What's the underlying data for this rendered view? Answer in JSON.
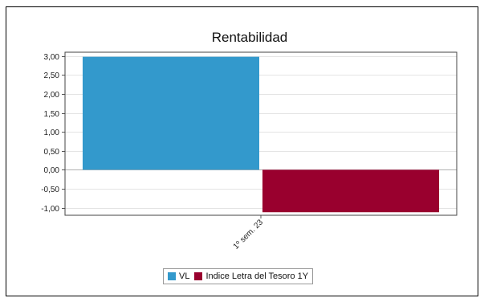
{
  "chart_data": {
    "type": "bar",
    "title": "Rentabilidad",
    "categories": [
      "1º sem. 23"
    ],
    "series": [
      {
        "name": "VL",
        "values": [
          2.98
        ],
        "color": "#3399cc"
      },
      {
        "name": "Indice Letra del Tesoro 1Y",
        "values": [
          -1.12
        ],
        "color": "#99002e"
      }
    ],
    "ylim": [
      -1.2,
      3.1
    ],
    "yticks": [
      3.0,
      2.5,
      2.0,
      1.5,
      1.0,
      0.5,
      0.0,
      -0.5,
      -1.0
    ],
    "ytick_labels": [
      "3,00",
      "2,50",
      "2,00",
      "1,50",
      "1,00",
      "0,50",
      "0,00",
      "-0,50",
      "-1,00"
    ],
    "grid": true,
    "legend_position": "bottom"
  }
}
